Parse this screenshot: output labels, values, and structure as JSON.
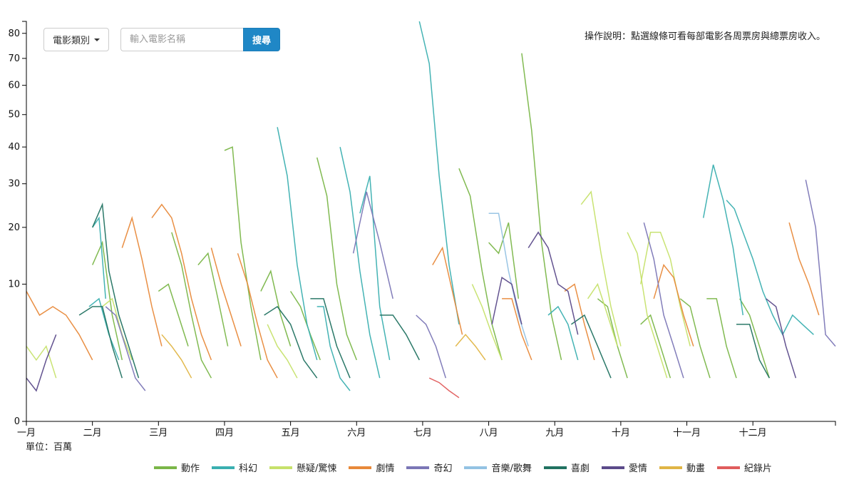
{
  "toolbar": {
    "category_label": "電影類別",
    "search_placeholder": "輸入電影名稱",
    "search_button": "搜尋"
  },
  "instructions": "操作說明：點選線條可看每部電影各周票房與總票房收入。",
  "unit_label": "單位：百萬",
  "colors": {
    "動作": "#7ab648",
    "科幻": "#3aafb0",
    "懸疑/驚悚": "#c6e16b",
    "劇情": "#e8893a",
    "奇幻": "#7b76b6",
    "音樂/歌舞": "#93c2e3",
    "喜劇": "#217261",
    "愛情": "#5b4a8a",
    "動畫": "#e0b545",
    "紀錄片": "#e05c5c"
  },
  "legend": [
    "動作",
    "科幻",
    "懸疑/驚悚",
    "劇情",
    "奇幻",
    "音樂/歌舞",
    "喜劇",
    "愛情",
    "動畫",
    "紀錄片"
  ],
  "chart_data": {
    "type": "line",
    "x_ticks": [
      "一月",
      "二月",
      "三月",
      "四月",
      "五月",
      "六月",
      "七月",
      "八月",
      "九月",
      "十月",
      "十一月",
      "十二月"
    ],
    "y_ticks": [
      0,
      10,
      20,
      30,
      40,
      50,
      60,
      70,
      80
    ],
    "y_scale": "sqrt",
    "ylim": [
      0,
      85
    ],
    "xlim": [
      0,
      12.25
    ],
    "grid": false,
    "legend_position": "bottom",
    "series": [
      {
        "genre": "動作",
        "x": [
          1.0,
          1.15,
          1.3,
          1.45
        ],
        "y": [
          13,
          17,
          6,
          2
        ]
      },
      {
        "genre": "動作",
        "x": [
          2.0,
          2.15,
          2.3,
          2.45
        ],
        "y": [
          9,
          10,
          6,
          3
        ]
      },
      {
        "genre": "動作",
        "x": [
          2.2,
          2.35,
          2.5,
          2.65,
          2.8
        ],
        "y": [
          19,
          13,
          6,
          2,
          1
        ]
      },
      {
        "genre": "動作",
        "x": [
          2.6,
          2.75,
          2.9,
          3.05
        ],
        "y": [
          13,
          15,
          8,
          3
        ]
      },
      {
        "genre": "動作",
        "x": [
          3.0,
          3.12,
          3.25,
          3.4,
          3.55
        ],
        "y": [
          39,
          40,
          17,
          7,
          2
        ]
      },
      {
        "genre": "動作",
        "x": [
          3.55,
          3.7,
          3.85,
          4.0
        ],
        "y": [
          9,
          12,
          6,
          3
        ]
      },
      {
        "genre": "動作",
        "x": [
          4.0,
          4.15,
          4.3,
          4.45
        ],
        "y": [
          9,
          7,
          4,
          2
        ]
      },
      {
        "genre": "動作",
        "x": [
          4.4,
          4.55,
          4.7,
          4.85,
          5.0
        ],
        "y": [
          37,
          27,
          10,
          4,
          2
        ]
      },
      {
        "genre": "動作",
        "x": [
          6.55,
          6.72,
          6.9,
          7.05,
          7.2
        ],
        "y": [
          34,
          27,
          12,
          5,
          2
        ]
      },
      {
        "genre": "動作",
        "x": [
          7.0,
          7.15,
          7.3,
          7.45
        ],
        "y": [
          17,
          15,
          21,
          8
        ]
      },
      {
        "genre": "動作",
        "x": [
          7.5,
          7.65,
          7.8,
          7.95,
          8.1
        ],
        "y": [
          72,
          45,
          17,
          6,
          2
        ]
      },
      {
        "genre": "動作",
        "x": [
          8.65,
          8.8,
          8.95,
          9.1
        ],
        "y": [
          8,
          7,
          3,
          1
        ]
      },
      {
        "genre": "動作",
        "x": [
          9.3,
          9.45,
          9.6,
          9.75
        ],
        "y": [
          5,
          6,
          3,
          1
        ]
      },
      {
        "genre": "動作",
        "x": [
          9.9,
          10.05,
          10.2,
          10.35
        ],
        "y": [
          8,
          7,
          3,
          1
        ]
      },
      {
        "genre": "動作",
        "x": [
          10.3,
          10.45,
          10.6,
          10.75
        ],
        "y": [
          8,
          8,
          3,
          1
        ]
      },
      {
        "genre": "動作",
        "x": [
          10.8,
          10.95,
          11.1,
          11.25
        ],
        "y": [
          8,
          6,
          3,
          1
        ]
      },
      {
        "genre": "科幻",
        "x": [
          0.95,
          1.1,
          1.25,
          1.4
        ],
        "y": [
          7,
          8,
          4,
          2
        ]
      },
      {
        "genre": "科幻",
        "x": [
          1.0,
          1.1,
          1.2
        ],
        "y": [
          20,
          22,
          8
        ]
      },
      {
        "genre": "科幻",
        "x": [
          3.8,
          3.95,
          4.1,
          4.25,
          4.4
        ],
        "y": [
          46,
          32,
          13,
          5,
          2
        ]
      },
      {
        "genre": "科幻",
        "x": [
          4.4,
          4.5,
          4.6,
          4.75,
          4.9
        ],
        "y": [
          7,
          7,
          3,
          1,
          0.5
        ]
      },
      {
        "genre": "科幻",
        "x": [
          4.75,
          4.9,
          5.05,
          5.2,
          5.35
        ],
        "y": [
          40,
          28,
          12,
          4,
          1
        ]
      },
      {
        "genre": "科幻",
        "x": [
          5.05,
          5.2,
          5.35,
          5.5
        ],
        "y": [
          23,
          32,
          7,
          2
        ]
      },
      {
        "genre": "科幻",
        "x": [
          5.95,
          6.1,
          6.25,
          6.4,
          6.55
        ],
        "y": [
          85,
          68,
          32,
          13,
          5
        ]
      },
      {
        "genre": "科幻",
        "x": [
          7.9,
          8.05,
          8.2,
          8.35
        ],
        "y": [
          6,
          7,
          5,
          2
        ]
      },
      {
        "genre": "科幻",
        "x": [
          10.25,
          10.4,
          10.55,
          10.7,
          10.85
        ],
        "y": [
          22,
          35,
          26,
          16,
          6
        ]
      },
      {
        "genre": "科幻",
        "x": [
          10.6,
          10.72,
          10.85,
          11.0,
          11.15,
          11.3,
          11.45,
          11.6,
          11.75,
          11.92
        ],
        "y": [
          26,
          24,
          19,
          14,
          9,
          6,
          4,
          6,
          5,
          4
        ]
      },
      {
        "genre": "懸疑/驚悚",
        "x": [
          0.0,
          0.15,
          0.3,
          0.45
        ],
        "y": [
          3,
          2,
          3,
          1
        ]
      },
      {
        "genre": "懸疑/驚悚",
        "x": [
          1.15,
          1.3,
          1.45,
          1.6
        ],
        "y": [
          7,
          8,
          4,
          2
        ]
      },
      {
        "genre": "懸疑/驚悚",
        "x": [
          6.75,
          6.9,
          7.05,
          7.2
        ],
        "y": [
          10,
          7,
          4,
          2
        ]
      },
      {
        "genre": "懸疑/驚悚",
        "x": [
          8.4,
          8.55,
          8.7,
          8.85,
          9.0
        ],
        "y": [
          25,
          28,
          15,
          7,
          3
        ]
      },
      {
        "genre": "懸疑/驚悚",
        "x": [
          9.1,
          9.25,
          9.4,
          9.55,
          9.7
        ],
        "y": [
          19,
          15,
          6,
          3,
          1
        ]
      },
      {
        "genre": "懸疑/驚悚",
        "x": [
          9.3,
          9.45,
          9.6,
          9.75,
          9.9,
          10.05
        ],
        "y": [
          10,
          19,
          19,
          14,
          7,
          3
        ]
      },
      {
        "genre": "懸疑/驚悚",
        "x": [
          8.5,
          8.65,
          8.8,
          8.95
        ],
        "y": [
          8,
          10,
          6,
          3
        ]
      },
      {
        "genre": "懸疑/驚悚",
        "x": [
          3.65,
          3.8,
          3.95,
          4.1
        ],
        "y": [
          5,
          3,
          2,
          1
        ]
      },
      {
        "genre": "劇情",
        "x": [
          0.0,
          0.2,
          0.4,
          0.6,
          0.8,
          1.0
        ],
        "y": [
          9,
          6,
          7,
          6,
          4,
          2
        ]
      },
      {
        "genre": "劇情",
        "x": [
          1.45,
          1.6,
          1.75,
          1.9,
          2.05
        ],
        "y": [
          16,
          22,
          14,
          7,
          3
        ]
      },
      {
        "genre": "劇情",
        "x": [
          1.9,
          2.05,
          2.2,
          2.35,
          2.5,
          2.65,
          2.8
        ],
        "y": [
          22,
          25,
          22,
          15,
          8,
          4,
          2
        ]
      },
      {
        "genre": "劇情",
        "x": [
          3.2,
          3.35,
          3.5,
          3.65,
          3.8
        ],
        "y": [
          15,
          10,
          5,
          2,
          1
        ]
      },
      {
        "genre": "劇情",
        "x": [
          6.15,
          6.3,
          6.45,
          6.6
        ],
        "y": [
          13,
          16,
          9,
          4
        ]
      },
      {
        "genre": "劇情",
        "x": [
          7.2,
          7.35,
          7.5,
          7.65
        ],
        "y": [
          8,
          8,
          4,
          2
        ]
      },
      {
        "genre": "劇情",
        "x": [
          8.15,
          8.3,
          8.45,
          8.6
        ],
        "y": [
          9,
          10,
          5,
          2
        ]
      },
      {
        "genre": "劇情",
        "x": [
          9.5,
          9.65,
          9.8,
          9.95,
          10.1
        ],
        "y": [
          8,
          13,
          11,
          6,
          3
        ]
      },
      {
        "genre": "劇情",
        "x": [
          11.55,
          11.7,
          11.85,
          12.0
        ],
        "y": [
          21,
          14,
          10,
          6
        ]
      },
      {
        "genre": "劇情",
        "x": [
          2.8,
          2.95,
          3.1,
          3.25
        ],
        "y": [
          16,
          10,
          6,
          3
        ]
      },
      {
        "genre": "奇幻",
        "x": [
          1.2,
          1.35,
          1.5,
          1.65,
          1.8
        ],
        "y": [
          7,
          6,
          3,
          1,
          0.5
        ]
      },
      {
        "genre": "奇幻",
        "x": [
          4.95,
          5.15,
          5.35,
          5.55
        ],
        "y": [
          15,
          28,
          17,
          8
        ]
      },
      {
        "genre": "奇幻",
        "x": [
          9.35,
          9.5,
          9.65,
          9.8,
          9.95
        ],
        "y": [
          21,
          14,
          6,
          3,
          1
        ]
      },
      {
        "genre": "奇幻",
        "x": [
          11.8,
          11.95,
          12.1,
          12.25
        ],
        "y": [
          31,
          20,
          4,
          3
        ]
      },
      {
        "genre": "奇幻",
        "x": [
          5.9,
          6.05,
          6.2,
          6.35
        ],
        "y": [
          6,
          5,
          3,
          1
        ]
      },
      {
        "genre": "音樂/歌舞",
        "x": [
          7.0,
          7.15,
          7.3,
          7.45,
          7.6
        ],
        "y": [
          23,
          23,
          12,
          6,
          3
        ]
      },
      {
        "genre": "喜劇",
        "x": [
          1.0,
          1.15,
          1.25,
          1.4,
          1.55,
          1.7
        ],
        "y": [
          20,
          25,
          12,
          6,
          3,
          1
        ]
      },
      {
        "genre": "喜劇",
        "x": [
          0.8,
          1.0,
          1.15,
          1.3,
          1.45
        ],
        "y": [
          6,
          7,
          7,
          3,
          1
        ]
      },
      {
        "genre": "喜劇",
        "x": [
          3.6,
          3.8,
          4.0,
          4.2,
          4.4
        ],
        "y": [
          6,
          7,
          5,
          2,
          1
        ]
      },
      {
        "genre": "喜劇",
        "x": [
          4.3,
          4.5,
          4.7,
          4.9
        ],
        "y": [
          8,
          8,
          3,
          1
        ]
      },
      {
        "genre": "喜劇",
        "x": [
          5.35,
          5.55,
          5.75,
          5.95
        ],
        "y": [
          6,
          6,
          4,
          2
        ]
      },
      {
        "genre": "喜劇",
        "x": [
          8.25,
          8.45,
          8.65,
          8.85
        ],
        "y": [
          5,
          6,
          3,
          1
        ]
      },
      {
        "genre": "喜劇",
        "x": [
          10.75,
          10.95,
          11.1,
          11.25
        ],
        "y": [
          5,
          5,
          2,
          1
        ]
      },
      {
        "genre": "愛情",
        "x": [
          7.6,
          7.75,
          7.9,
          8.05,
          8.2,
          8.35
        ],
        "y": [
          16,
          19,
          16,
          10,
          9,
          4
        ]
      },
      {
        "genre": "愛情",
        "x": [
          7.05,
          7.2,
          7.35,
          7.5
        ],
        "y": [
          5,
          11,
          10,
          5
        ]
      },
      {
        "genre": "愛情",
        "x": [
          11.2,
          11.35,
          11.5,
          11.65
        ],
        "y": [
          8,
          7,
          3,
          1
        ]
      },
      {
        "genre": "愛情",
        "x": [
          0.0,
          0.15,
          0.3,
          0.45
        ],
        "y": [
          1,
          0.5,
          2,
          4
        ]
      },
      {
        "genre": "動畫",
        "x": [
          2.05,
          2.2,
          2.35,
          2.5
        ],
        "y": [
          4,
          3,
          2,
          1
        ]
      },
      {
        "genre": "動畫",
        "x": [
          6.5,
          6.65,
          6.8,
          6.95
        ],
        "y": [
          3,
          4,
          3,
          2
        ]
      },
      {
        "genre": "紀錄片",
        "x": [
          6.1,
          6.25,
          6.4,
          6.55
        ],
        "y": [
          1,
          0.8,
          0.5,
          0.3
        ]
      }
    ]
  }
}
